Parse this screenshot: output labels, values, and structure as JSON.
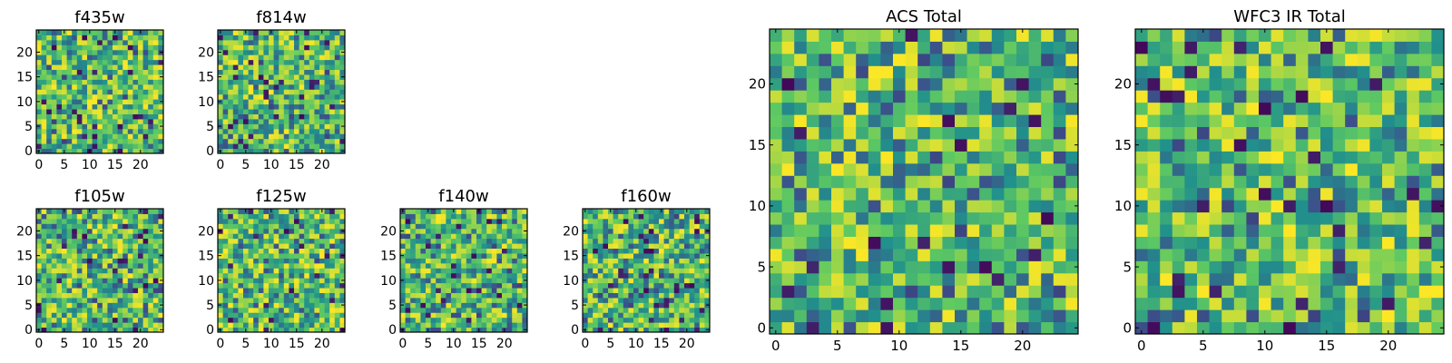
{
  "figure": {
    "background": "#ffffff"
  },
  "colormap": {
    "name": "viridis",
    "stops": [
      "#440154",
      "#3b528b",
      "#21918c",
      "#5ec962",
      "#fde725"
    ]
  },
  "chart_data": [
    {
      "type": "heatmap",
      "title": "f435w",
      "grid": [
        25,
        25
      ],
      "xticks": [
        0,
        5,
        10,
        15,
        20
      ],
      "yticks": [
        0,
        5,
        10,
        15,
        20
      ],
      "xlim": [
        0,
        25
      ],
      "ylim": [
        0,
        25
      ],
      "grid_lines": false,
      "seed": 11,
      "value_range": [
        0,
        1
      ]
    },
    {
      "type": "heatmap",
      "title": "f814w",
      "grid": [
        25,
        25
      ],
      "xticks": [
        0,
        5,
        10,
        15,
        20
      ],
      "yticks": [
        0,
        5,
        10,
        15,
        20
      ],
      "xlim": [
        0,
        25
      ],
      "ylim": [
        0,
        25
      ],
      "grid_lines": false,
      "seed": 23,
      "value_range": [
        0,
        1
      ]
    },
    {
      "type": "heatmap",
      "title": "f105w",
      "grid": [
        25,
        25
      ],
      "xticks": [
        0,
        5,
        10,
        15,
        20
      ],
      "yticks": [
        0,
        5,
        10,
        15,
        20
      ],
      "xlim": [
        0,
        25
      ],
      "ylim": [
        0,
        25
      ],
      "grid_lines": false,
      "seed": 37,
      "value_range": [
        0,
        1
      ]
    },
    {
      "type": "heatmap",
      "title": "f125w",
      "grid": [
        25,
        25
      ],
      "xticks": [
        0,
        5,
        10,
        15,
        20
      ],
      "yticks": [
        0,
        5,
        10,
        15,
        20
      ],
      "xlim": [
        0,
        25
      ],
      "ylim": [
        0,
        25
      ],
      "grid_lines": false,
      "seed": 41,
      "value_range": [
        0,
        1
      ]
    },
    {
      "type": "heatmap",
      "title": "f140w",
      "grid": [
        25,
        25
      ],
      "xticks": [
        0,
        5,
        10,
        15,
        20
      ],
      "yticks": [
        0,
        5,
        10,
        15,
        20
      ],
      "xlim": [
        0,
        25
      ],
      "ylim": [
        0,
        25
      ],
      "grid_lines": false,
      "seed": 53,
      "value_range": [
        0,
        1
      ]
    },
    {
      "type": "heatmap",
      "title": "f160w",
      "grid": [
        25,
        25
      ],
      "xticks": [
        0,
        5,
        10,
        15,
        20
      ],
      "yticks": [
        0,
        5,
        10,
        15,
        20
      ],
      "xlim": [
        0,
        25
      ],
      "ylim": [
        0,
        25
      ],
      "grid_lines": false,
      "seed": 67,
      "value_range": [
        0,
        1
      ]
    },
    {
      "type": "heatmap",
      "title": "ACS Total",
      "grid": [
        25,
        25
      ],
      "xticks": [
        0,
        5,
        10,
        15,
        20
      ],
      "yticks": [
        0,
        5,
        10,
        15,
        20
      ],
      "xlim": [
        0,
        25
      ],
      "ylim": [
        0,
        25
      ],
      "grid_lines": false,
      "seed": 79,
      "value_range": [
        0,
        1
      ]
    },
    {
      "type": "heatmap",
      "title": "WFC3 IR Total",
      "grid": [
        25,
        25
      ],
      "xticks": [
        0,
        5,
        10,
        15,
        20
      ],
      "yticks": [
        0,
        5,
        10,
        15,
        20
      ],
      "xlim": [
        0,
        25
      ],
      "ylim": [
        0,
        25
      ],
      "grid_lines": false,
      "seed": 97,
      "value_range": [
        0,
        1
      ]
    }
  ]
}
